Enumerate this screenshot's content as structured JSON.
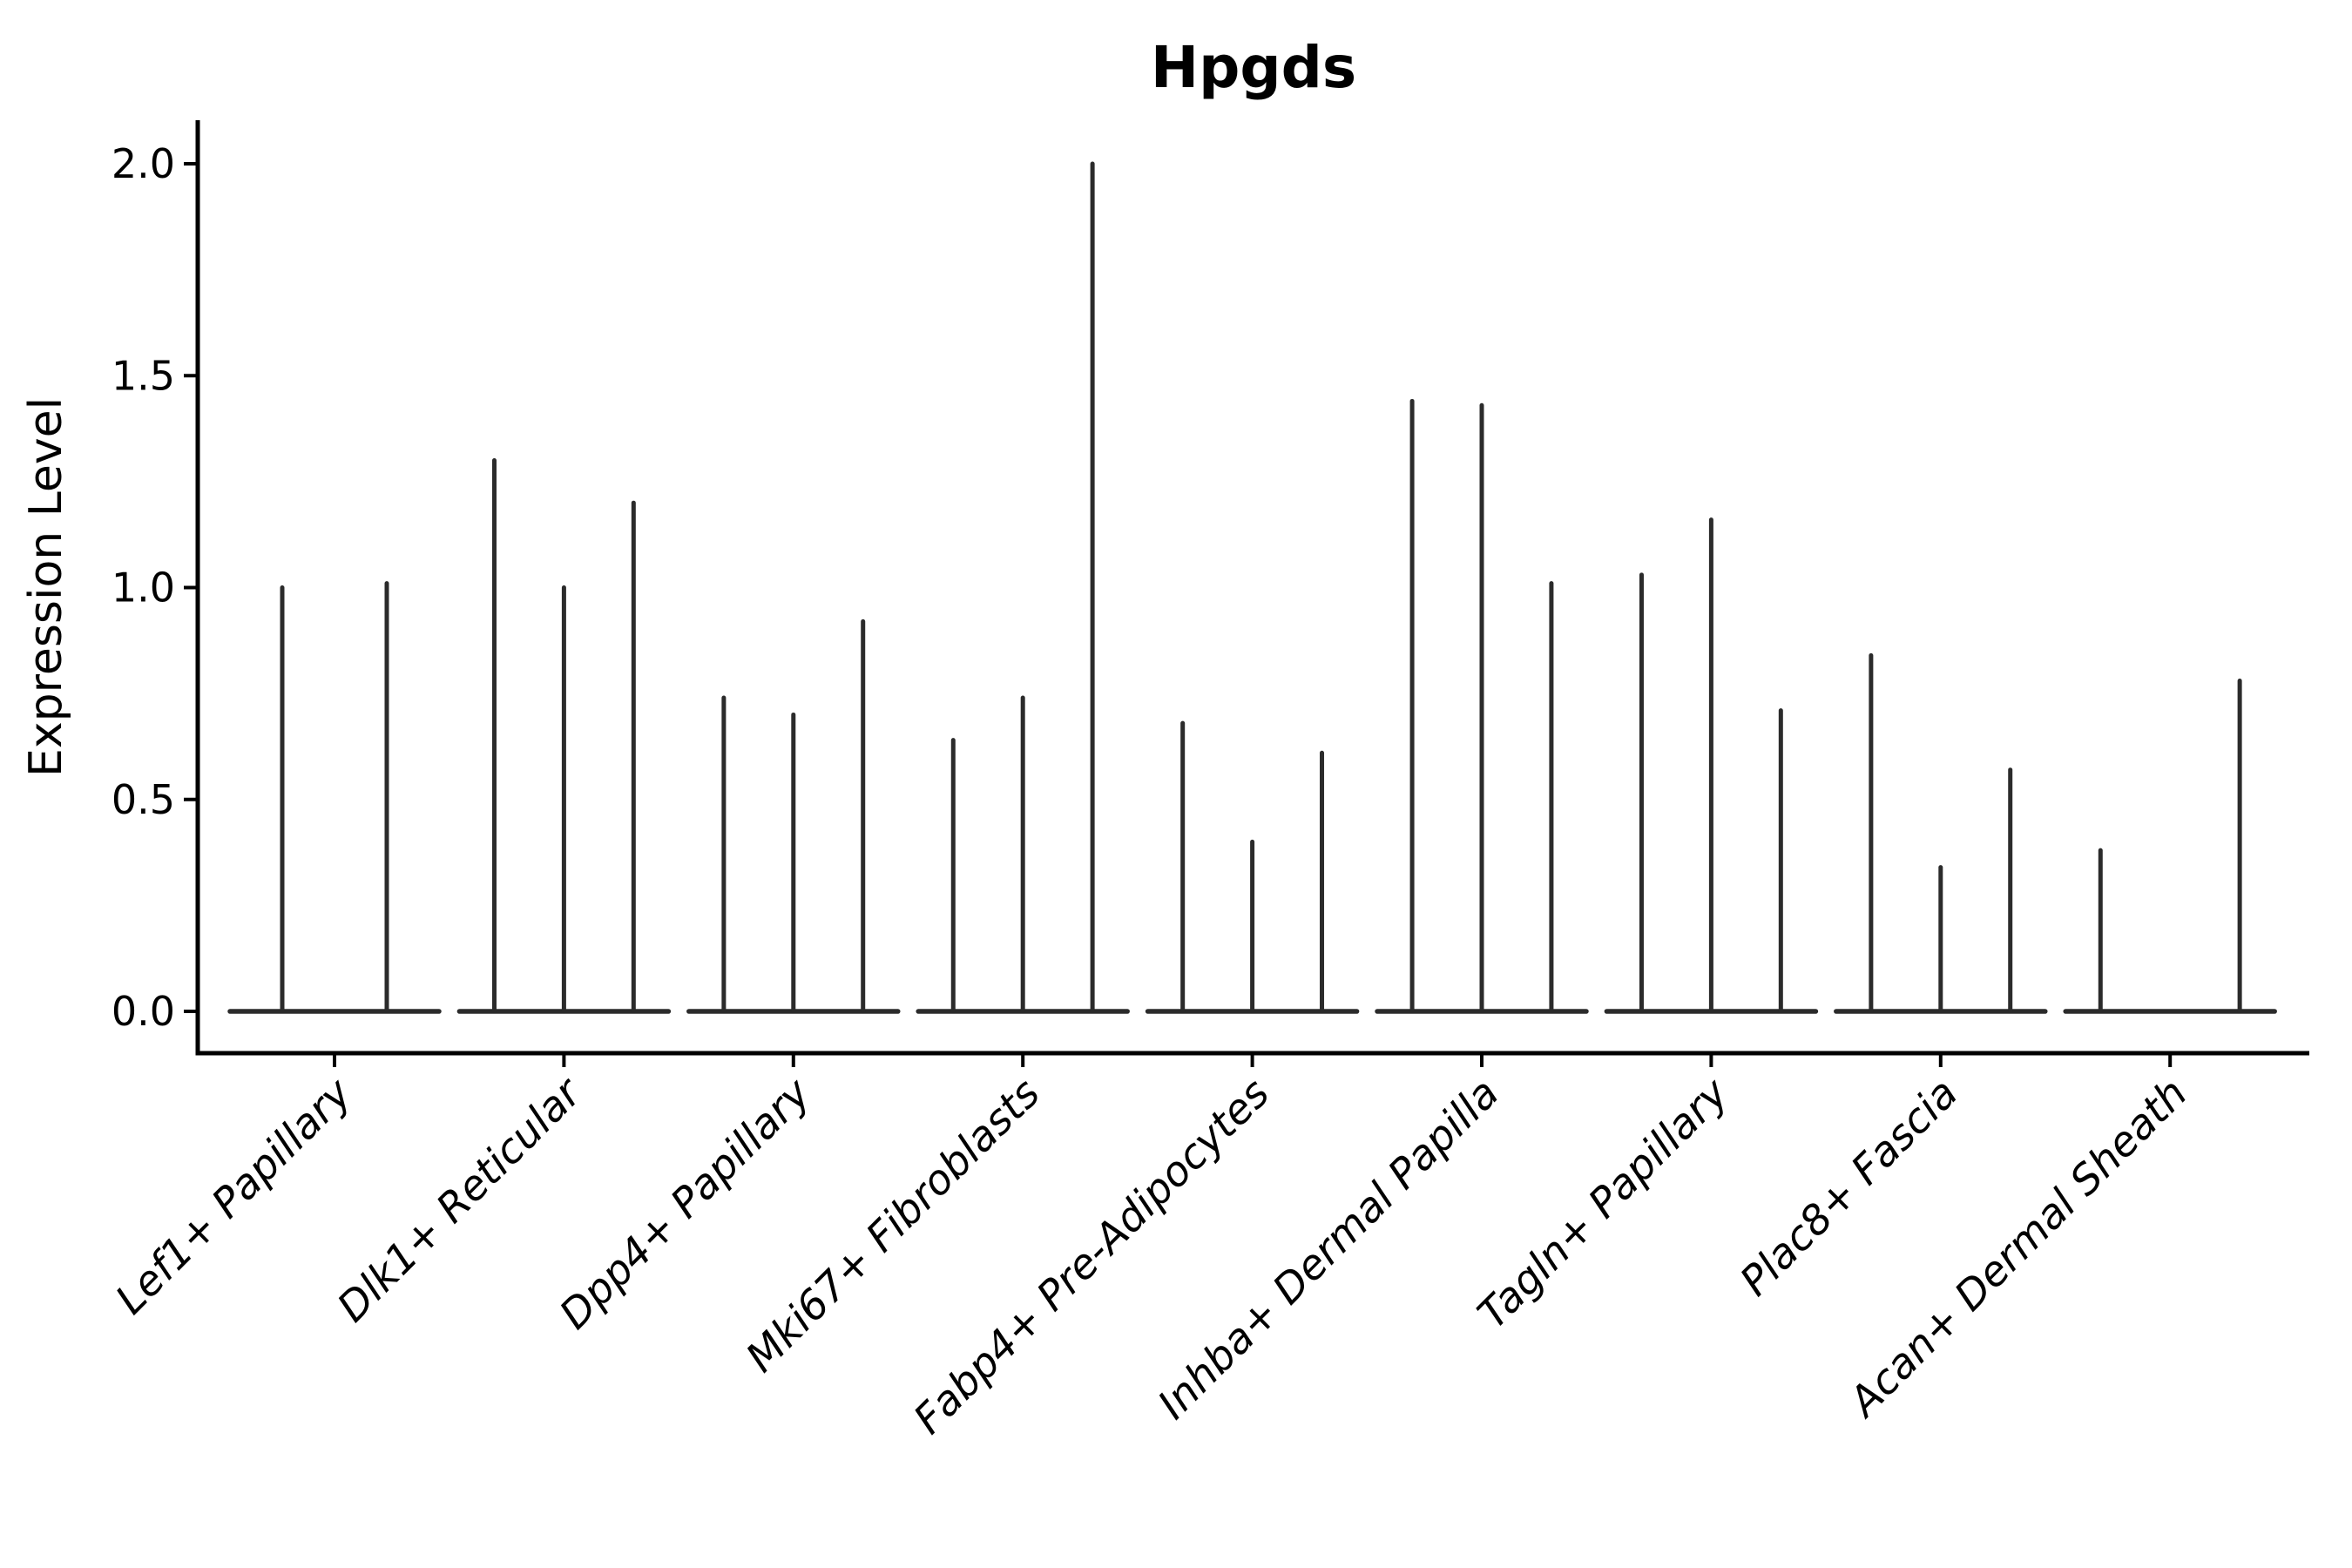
{
  "chart_data": {
    "type": "violin",
    "title": "Hpgds",
    "xlabel": "",
    "ylabel": "Expression Level",
    "yticks": [
      "0.0",
      "0.5",
      "1.0",
      "1.5",
      "2.0"
    ],
    "ylim": [
      -0.1,
      2.1
    ],
    "grid": false,
    "legend": null,
    "line_color": "#2b2b2b",
    "axis_color": "#000000",
    "categories": [
      "Lef1+ Papillary",
      "Dlk1+ Reticular",
      "Dpp4+ Papillary",
      "Mki67+ Fibroblasts",
      "Fabp4+ Pre-Adipocytes",
      "Inhba+ Dermal Papilla",
      "Tagln+ Papillary",
      "Plac8+ Fascia",
      "Acan+ Dermal Sheath"
    ],
    "groups": [
      {
        "category": "Lef1+ Papillary",
        "spikes": [
          {
            "slot": -0.25,
            "value": 1.0
          },
          {
            "slot": 0.25,
            "value": 1.01
          }
        ]
      },
      {
        "category": "Dlk1+ Reticular",
        "spikes": [
          {
            "slot": -0.333,
            "value": 1.3
          },
          {
            "slot": 0.0,
            "value": 1.0
          },
          {
            "slot": 0.333,
            "value": 1.2
          }
        ]
      },
      {
        "category": "Dpp4+ Papillary",
        "spikes": [
          {
            "slot": -0.333,
            "value": 0.74
          },
          {
            "slot": 0.0,
            "value": 0.7
          },
          {
            "slot": 0.333,
            "value": 0.92
          }
        ]
      },
      {
        "category": "Mki67+ Fibroblasts",
        "spikes": [
          {
            "slot": -0.333,
            "value": 0.64
          },
          {
            "slot": 0.0,
            "value": 0.74
          },
          {
            "slot": 0.333,
            "value": 2.0
          }
        ]
      },
      {
        "category": "Fabp4+ Pre-Adipocytes",
        "spikes": [
          {
            "slot": -0.333,
            "value": 0.68
          },
          {
            "slot": 0.0,
            "value": 0.4
          },
          {
            "slot": 0.333,
            "value": 0.61
          }
        ]
      },
      {
        "category": "Inhba+ Dermal Papilla",
        "spikes": [
          {
            "slot": -0.333,
            "value": 1.44
          },
          {
            "slot": 0.0,
            "value": 1.43
          },
          {
            "slot": 0.333,
            "value": 1.01
          }
        ]
      },
      {
        "category": "Tagln+ Papillary",
        "spikes": [
          {
            "slot": -0.333,
            "value": 1.03
          },
          {
            "slot": 0.0,
            "value": 1.16
          },
          {
            "slot": 0.333,
            "value": 0.71
          }
        ]
      },
      {
        "category": "Plac8+ Fascia",
        "spikes": [
          {
            "slot": -0.333,
            "value": 0.84
          },
          {
            "slot": 0.0,
            "value": 0.34
          },
          {
            "slot": 0.333,
            "value": 0.57
          }
        ]
      },
      {
        "category": "Acan+ Dermal Sheath",
        "spikes": [
          {
            "slot": -0.333,
            "value": 0.38
          },
          {
            "slot": 0.333,
            "value": 0.78
          }
        ]
      }
    ]
  }
}
